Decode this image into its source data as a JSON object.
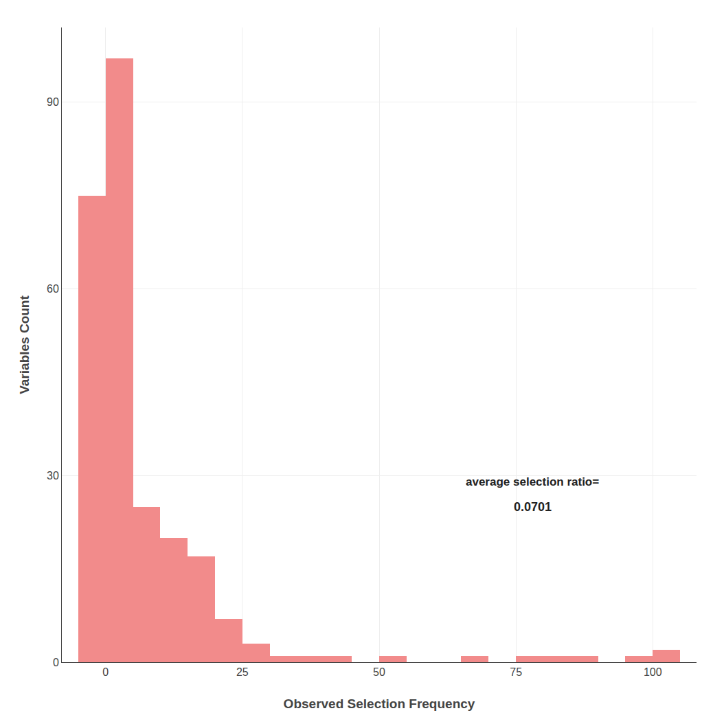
{
  "chart_data": {
    "type": "histogram",
    "bins": [
      -5,
      0,
      5,
      10,
      15,
      20,
      25,
      30,
      35,
      40,
      45,
      50,
      55,
      60,
      65,
      70,
      75,
      80,
      85,
      90,
      95,
      100,
      105
    ],
    "values": [
      75,
      97,
      25,
      20,
      17,
      7,
      3,
      1,
      1,
      1,
      0,
      1,
      0,
      0,
      1,
      0,
      1,
      1,
      1,
      0,
      1,
      2
    ],
    "color": "#F28B8B",
    "xlabel": "Observed Selection Frequency",
    "ylabel": "Variables Count",
    "xlim": [
      -8,
      108
    ],
    "ylim": [
      0,
      102
    ],
    "xticks": [
      0,
      25,
      50,
      75,
      100
    ],
    "yticks": [
      0,
      30,
      60,
      90
    ],
    "grid": true,
    "annotations": [
      {
        "text": "average selection ratio=",
        "x": 78,
        "y": 29
      },
      {
        "text": "0.0701",
        "x": 78,
        "y": 25
      }
    ]
  }
}
